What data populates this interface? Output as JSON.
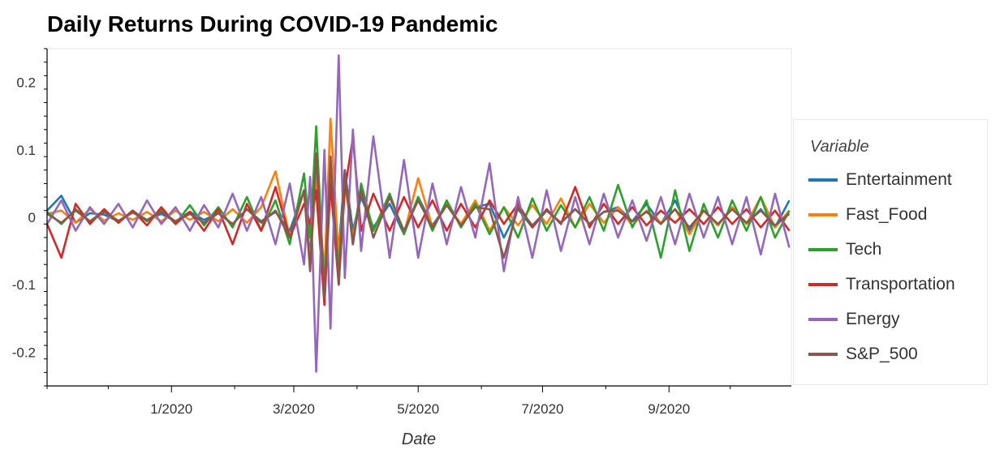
{
  "chart_data": {
    "type": "line",
    "title": "Daily Returns During COVID-19 Pandemic",
    "xlabel": "Date",
    "ylabel": "",
    "x_range": [
      "2019-11-01",
      "2020-10-31"
    ],
    "ylim": [
      -0.25,
      0.25
    ],
    "x_ticks": [
      {
        "label": "1/2020",
        "date": "2020-01-01"
      },
      {
        "label": "3/2020",
        "date": "2020-03-01"
      },
      {
        "label": "5/2020",
        "date": "2020-05-01"
      },
      {
        "label": "7/2020",
        "date": "2020-07-01"
      },
      {
        "label": "9/2020",
        "date": "2020-09-01"
      }
    ],
    "y_ticks": [
      {
        "label": "0.2",
        "value": 0.2
      },
      {
        "label": "0.1",
        "value": 0.1
      },
      {
        "label": "0",
        "value": 0
      },
      {
        "label": "-0.1",
        "value": -0.1
      },
      {
        "label": "-0.2",
        "value": -0.2
      }
    ],
    "legend_title": "Variable",
    "legend_position": "right",
    "grid": false,
    "x": [
      "2019-11-01",
      "2019-11-08",
      "2019-11-15",
      "2019-11-22",
      "2019-11-29",
      "2019-12-06",
      "2019-12-13",
      "2019-12-20",
      "2019-12-27",
      "2020-01-03",
      "2020-01-10",
      "2020-01-17",
      "2020-01-24",
      "2020-01-31",
      "2020-02-07",
      "2020-02-14",
      "2020-02-21",
      "2020-02-28",
      "2020-03-06",
      "2020-03-09",
      "2020-03-12",
      "2020-03-16",
      "2020-03-19",
      "2020-03-23",
      "2020-03-26",
      "2020-03-30",
      "2020-04-03",
      "2020-04-09",
      "2020-04-17",
      "2020-04-24",
      "2020-05-01",
      "2020-05-08",
      "2020-05-15",
      "2020-05-22",
      "2020-05-29",
      "2020-06-05",
      "2020-06-12",
      "2020-06-19",
      "2020-06-26",
      "2020-07-03",
      "2020-07-10",
      "2020-07-17",
      "2020-07-24",
      "2020-07-31",
      "2020-08-07",
      "2020-08-14",
      "2020-08-21",
      "2020-08-28",
      "2020-09-04",
      "2020-09-11",
      "2020-09-18",
      "2020-09-25",
      "2020-10-02",
      "2020-10-09",
      "2020-10-16",
      "2020-10-23",
      "2020-10-30"
    ],
    "series": [
      {
        "name": "Entertainment",
        "color": "#1f77b4",
        "values": [
          0.01,
          0.032,
          -0.008,
          0.006,
          0.004,
          -0.006,
          0.009,
          -0.004,
          0.005,
          -0.006,
          0.008,
          -0.004,
          0.006,
          -0.01,
          0.012,
          -0.006,
          0.008,
          -0.02,
          0.04,
          -0.06,
          0.09,
          -0.1,
          0.06,
          -0.05,
          0.07,
          -0.02,
          0.03,
          -0.015,
          0.02,
          -0.025,
          0.03,
          -0.012,
          0.018,
          -0.01,
          0.015,
          0.02,
          -0.03,
          0.012,
          -0.015,
          0.01,
          -0.008,
          0.012,
          -0.01,
          0.008,
          0.015,
          -0.006,
          0.02,
          -0.01,
          0.025,
          -0.02,
          0.01,
          -0.012,
          0.015,
          -0.01,
          0.012,
          -0.015,
          0.025
        ]
      },
      {
        "name": "Fast_Food",
        "color": "#ff7f0e",
        "values": [
          0.005,
          0.01,
          -0.008,
          0.012,
          -0.005,
          0.006,
          -0.004,
          0.008,
          -0.006,
          0.01,
          -0.004,
          0.008,
          -0.006,
          0.012,
          -0.008,
          0.015,
          0.068,
          -0.03,
          0.04,
          -0.07,
          0.06,
          -0.08,
          0.146,
          -0.06,
          0.05,
          -0.03,
          0.04,
          -0.02,
          0.035,
          -0.025,
          0.058,
          -0.015,
          0.02,
          -0.01,
          0.025,
          -0.02,
          0.015,
          -0.012,
          0.018,
          -0.01,
          0.028,
          -0.015,
          0.02,
          -0.008,
          0.015,
          -0.012,
          0.01,
          -0.008,
          0.012,
          -0.025,
          0.01,
          -0.012,
          0.015,
          -0.01,
          0.03,
          -0.015,
          0.01
        ]
      },
      {
        "name": "Tech",
        "color": "#2ca02c",
        "values": [
          0.008,
          -0.01,
          0.012,
          -0.006,
          0.01,
          -0.008,
          0.01,
          -0.006,
          0.012,
          -0.01,
          0.018,
          -0.012,
          0.015,
          -0.015,
          0.03,
          -0.02,
          0.025,
          -0.04,
          0.065,
          -0.03,
          0.135,
          -0.11,
          0.075,
          -0.08,
          0.062,
          -0.04,
          0.05,
          -0.02,
          0.035,
          -0.025,
          0.03,
          -0.02,
          0.025,
          -0.015,
          0.02,
          -0.025,
          0.015,
          -0.03,
          0.028,
          -0.02,
          0.018,
          -0.015,
          0.03,
          -0.02,
          0.048,
          -0.015,
          0.025,
          -0.06,
          0.04,
          -0.05,
          0.02,
          -0.03,
          0.025,
          -0.02,
          0.03,
          -0.03,
          0.01
        ]
      },
      {
        "name": "Transportation",
        "color": "#d62728",
        "values": [
          -0.01,
          -0.06,
          0.02,
          -0.01,
          0.012,
          -0.008,
          0.01,
          -0.012,
          0.015,
          -0.01,
          0.008,
          -0.02,
          0.012,
          -0.04,
          0.02,
          -0.02,
          0.045,
          -0.03,
          0.02,
          -0.01,
          0.04,
          -0.13,
          0.05,
          -0.1,
          0.04,
          0.118,
          -0.02,
          0.035,
          -0.02,
          0.03,
          -0.015,
          0.025,
          -0.02,
          0.02,
          -0.015,
          0.025,
          -0.01,
          0.02,
          -0.015,
          0.012,
          -0.01,
          0.045,
          -0.015,
          0.02,
          -0.01,
          0.015,
          -0.012,
          0.01,
          -0.008,
          0.012,
          -0.01,
          0.015,
          -0.01,
          0.012,
          -0.015,
          0.01,
          -0.02
        ]
      },
      {
        "name": "Energy",
        "color": "#9467bd",
        "values": [
          -0.01,
          0.025,
          -0.02,
          0.015,
          -0.01,
          0.02,
          -0.015,
          0.025,
          -0.01,
          0.015,
          -0.02,
          0.018,
          -0.015,
          0.035,
          -0.02,
          0.03,
          -0.04,
          0.05,
          -0.07,
          0.06,
          -0.229,
          0.1,
          -0.165,
          0.24,
          -0.09,
          0.13,
          -0.05,
          0.12,
          -0.06,
          0.085,
          -0.06,
          0.05,
          -0.04,
          0.045,
          -0.03,
          0.08,
          -0.08,
          0.03,
          -0.06,
          0.04,
          -0.05,
          0.03,
          -0.04,
          0.035,
          -0.03,
          0.025,
          -0.035,
          0.03,
          -0.04,
          0.035,
          -0.03,
          0.03,
          -0.04,
          0.03,
          -0.055,
          0.035,
          -0.045
        ]
      },
      {
        "name": "S&P_500",
        "color": "#8c564b",
        "values": [
          0.005,
          -0.008,
          0.01,
          -0.006,
          0.008,
          -0.005,
          0.007,
          -0.004,
          0.008,
          -0.006,
          0.005,
          -0.008,
          0.006,
          -0.01,
          0.012,
          -0.008,
          0.01,
          -0.03,
          0.04,
          -0.08,
          0.095,
          -0.12,
          0.09,
          -0.1,
          0.07,
          -0.04,
          0.04,
          -0.03,
          0.03,
          -0.02,
          0.025,
          -0.015,
          0.018,
          -0.012,
          0.015,
          0.012,
          -0.06,
          0.015,
          -0.012,
          0.01,
          -0.008,
          0.012,
          -0.01,
          0.008,
          0.01,
          -0.006,
          0.008,
          -0.01,
          0.012,
          -0.015,
          0.01,
          -0.01,
          0.012,
          -0.008,
          0.01,
          -0.012,
          0.005
        ]
      }
    ]
  }
}
